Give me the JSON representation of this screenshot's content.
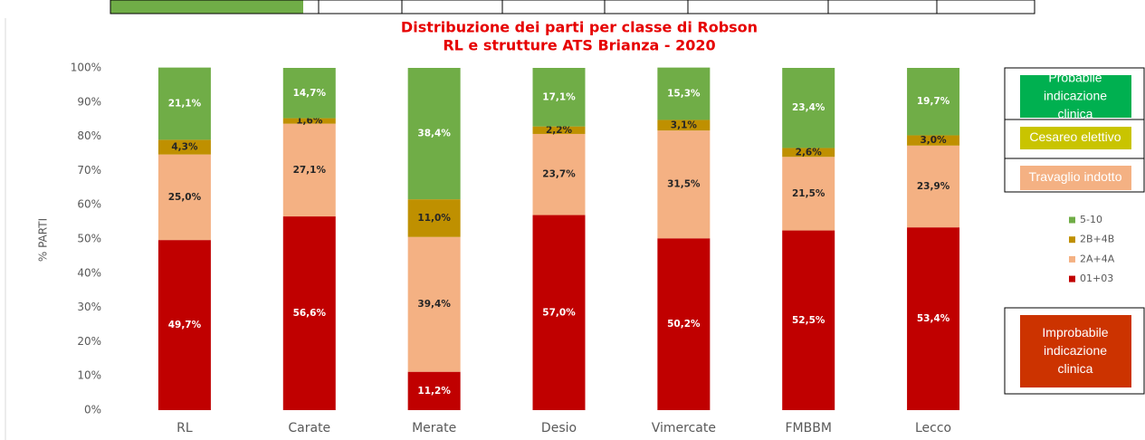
{
  "chart_data": {
    "type": "stacked_bar",
    "title": "Distribuzione dei parti per classe di Robson",
    "subtitle": "RL e strutture ATS Brianza - 2020",
    "y_label": "% PARTI",
    "categories": [
      "RL",
      "Carate",
      "Merate",
      "Desio",
      "Vimercate",
      "FMBBM",
      "Lecco"
    ],
    "series": [
      {
        "name": "01+03",
        "color": "#c00000",
        "values": [
          49.7,
          56.6,
          11.2,
          57.0,
          50.2,
          52.5,
          53.4
        ],
        "value_labels": [
          "49,7%",
          "56,6%",
          "11,2%",
          "57,0%",
          "50,2%",
          "52,5%",
          "53,4%"
        ]
      },
      {
        "name": "2A+4A",
        "color": "#f4b183",
        "values": [
          25.0,
          27.1,
          39.4,
          23.7,
          31.5,
          21.5,
          23.9
        ],
        "value_labels": [
          "25,0%",
          "27,1%",
          "39,4%",
          "23,7%",
          "31,5%",
          "21,5%",
          "23,9%"
        ]
      },
      {
        "name": "2B+4B",
        "color": "#bf9000",
        "values": [
          4.3,
          1.6,
          11.0,
          2.2,
          3.1,
          2.6,
          3.0
        ],
        "value_labels": [
          "4,3%",
          "1,6%",
          "11,0%",
          "2,2%",
          "3,1%",
          "2,6%",
          "3,0%"
        ]
      },
      {
        "name": "5-10",
        "color": "#70ad47",
        "values": [
          21.1,
          14.7,
          38.4,
          17.1,
          15.3,
          23.4,
          19.7
        ],
        "value_labels": [
          "21,1%",
          "14,7%",
          "38,4%",
          "17,1%",
          "15,3%",
          "23,4%",
          "19,7%"
        ]
      }
    ],
    "ylim": [
      0,
      100
    ],
    "yticks": [
      {
        "value": 0,
        "label": "0%"
      },
      {
        "value": 10,
        "label": "10%"
      },
      {
        "value": 20,
        "label": "20%"
      },
      {
        "value": 30,
        "label": "30%"
      },
      {
        "value": 40,
        "label": "40%"
      },
      {
        "value": 50,
        "label": "50%"
      },
      {
        "value": 60,
        "label": "60%"
      },
      {
        "value": 70,
        "label": "70%"
      },
      {
        "value": 80,
        "label": "80%"
      },
      {
        "value": 90,
        "label": "90%"
      },
      {
        "value": 100,
        "label": "100%"
      }
    ],
    "annotations": [
      "Probabile indicazione clinica",
      "Cesareo elettivo",
      "Travaglio indotto",
      "Improbabile indicazione clinica"
    ]
  }
}
